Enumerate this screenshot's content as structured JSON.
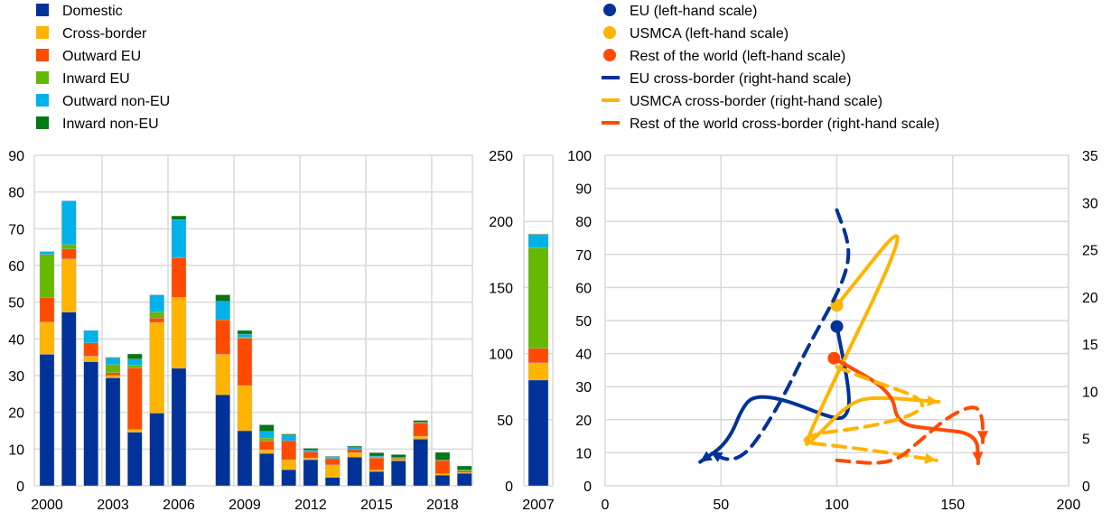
{
  "chart_data": [
    {
      "type": "bar",
      "stacked": true,
      "title": "",
      "xlabel": "",
      "ylabel": "",
      "ylim": [
        0,
        90
      ],
      "yticks": [
        "0",
        "10",
        "20",
        "30",
        "40",
        "50",
        "60",
        "70",
        "80",
        "90"
      ],
      "xtick_labels": [
        "2000",
        "2003",
        "2006",
        "2009",
        "2012",
        "2015",
        "2018"
      ],
      "categories": [
        "2000",
        "2001",
        "2002",
        "2003",
        "2004",
        "2005",
        "2006",
        "2007",
        "2008",
        "2009",
        "2010",
        "2011",
        "2012",
        "2013",
        "2014",
        "2015",
        "2016",
        "2017",
        "2018",
        "2019"
      ],
      "legend_placement": "top-left",
      "series": [
        {
          "name": "Domestic",
          "color": "#003299",
          "values": [
            35.8,
            47.3,
            33.8,
            29.4,
            14.6,
            19.8,
            32.0,
            null,
            24.8,
            15.0,
            8.8,
            4.4,
            7.1,
            2.3,
            7.8,
            3.9,
            6.8,
            12.7,
            2.9,
            3.4
          ]
        },
        {
          "name": "Cross-border",
          "color": "#FFB400",
          "values": [
            8.8,
            14.5,
            1.5,
            0.6,
            0.7,
            24.7,
            19.3,
            null,
            11.0,
            12.3,
            1.0,
            2.7,
            0.5,
            3.4,
            1.2,
            0.4,
            0.4,
            0.8,
            0.4,
            0.2
          ]
        },
        {
          "name": "Outward EU",
          "color": "#FF4B00",
          "values": [
            6.6,
            2.7,
            3.6,
            0.8,
            16.8,
            1.2,
            10.8,
            null,
            9.4,
            12.9,
            2.4,
            5.2,
            1.6,
            1.7,
            1.0,
            3.3,
            0.3,
            3.6,
            3.6,
            0.4
          ]
        },
        {
          "name": "Inward EU",
          "color": "#65B800",
          "values": [
            11.8,
            1.2,
            0,
            2.2,
            0.8,
            1.6,
            0,
            null,
            0,
            0.3,
            0.8,
            0,
            0,
            0,
            0,
            0.2,
            0.2,
            0.2,
            0.1,
            0.3
          ]
        },
        {
          "name": "Outward non-EU",
          "color": "#00B1EA",
          "values": [
            0.8,
            11.9,
            3.4,
            1.8,
            1.6,
            4.7,
            10.4,
            null,
            5.0,
            0.8,
            1.8,
            1.5,
            0.5,
            0.4,
            0.4,
            0.3,
            0,
            0,
            0,
            0
          ]
        },
        {
          "name": "Inward non-EU",
          "color": "#007816",
          "values": [
            0,
            0,
            0,
            0.2,
            1.4,
            0,
            1.0,
            null,
            1.8,
            1.0,
            1.8,
            0.3,
            0.5,
            0.2,
            0.4,
            0.9,
            0.8,
            0.5,
            2.1,
            1.1
          ]
        }
      ]
    },
    {
      "type": "bar",
      "stacked": true,
      "ylim": [
        0,
        250
      ],
      "yticks": [
        "0",
        "50",
        "100",
        "150",
        "200",
        "250"
      ],
      "categories": [
        "2007"
      ],
      "series": [
        {
          "name": "Domestic",
          "values": [
            80
          ]
        },
        {
          "name": "Cross-border",
          "values": [
            13
          ]
        },
        {
          "name": "Outward EU",
          "values": [
            11
          ]
        },
        {
          "name": "Inward EU",
          "values": [
            76
          ]
        },
        {
          "name": "Outward non-EU",
          "values": [
            10
          ]
        },
        {
          "name": "Inward non-EU",
          "values": [
            0.5
          ]
        }
      ]
    },
    {
      "type": "line",
      "xlim": [
        0,
        200
      ],
      "ylim_left": [
        0,
        100
      ],
      "ylim_right": [
        0,
        35
      ],
      "xticks": [
        "0",
        "50",
        "100",
        "150",
        "200"
      ],
      "yticks_left": [
        "0",
        "10",
        "20",
        "30",
        "40",
        "50",
        "60",
        "70",
        "80",
        "90",
        "100"
      ],
      "yticks_right": [
        "0",
        "5",
        "10",
        "15",
        "20",
        "25",
        "30",
        "35"
      ],
      "legend_placement": "top",
      "series": [
        {
          "name": "EU (left-hand scale)",
          "color": "#003299",
          "style": "solid",
          "axis": "left",
          "points": [
            [
              100,
              48.2
            ],
            [
              106,
              26.8
            ],
            [
              104,
              20.4
            ],
            [
              97.5,
              20.5
            ],
            [
              78,
              26
            ],
            [
              66,
              27.3
            ],
            [
              60,
              25
            ],
            [
              53,
              13
            ],
            [
              41,
              7.2
            ]
          ]
        },
        {
          "name": "USMCA (left-hand scale)",
          "color": "#FFB400",
          "style": "solid",
          "axis": "left",
          "points": [
            [
              100,
              54.6
            ],
            [
              137,
              86.9
            ],
            [
              84.5,
              11.3
            ],
            [
              90,
              14
            ],
            [
              106.5,
              25.9
            ],
            [
              119.6,
              26.8
            ],
            [
              144,
              25.4
            ]
          ]
        },
        {
          "name": "Rest of the world (left-hand scale)",
          "color": "#FF4B00",
          "style": "solid",
          "axis": "left",
          "points": [
            [
              98.8,
              38.6
            ],
            [
              124,
              28.6
            ],
            [
              126,
              18.6
            ],
            [
              141.6,
              17.2
            ],
            [
              160.5,
              15.8
            ],
            [
              161,
              6.8
            ]
          ]
        },
        {
          "name": "EU cross-border (right-hand scale)",
          "color": "#003299",
          "style": "dashed",
          "axis": "right",
          "points": [
            [
              100,
              29.2
            ],
            [
              105,
              25.9
            ],
            [
              105,
              23.4
            ],
            [
              100,
              20.2
            ],
            [
              87,
              14.5
            ],
            [
              77,
              9.4
            ],
            [
              65,
              4.6
            ],
            [
              58.5,
              3
            ],
            [
              52,
              2.7
            ],
            [
              45.5,
              3.6
            ]
          ]
        },
        {
          "name": "USMCA cross-border (right-hand scale)",
          "color": "#FFB400",
          "style": "dashed",
          "axis": "right",
          "points": [
            [
              100,
              12.6
            ],
            [
              113,
              11.3
            ],
            [
              139,
              9.1
            ],
            [
              134,
              7.5
            ],
            [
              113,
              6.2
            ],
            [
              89.7,
              5.5
            ],
            [
              84.5,
              4.6
            ],
            [
              97.5,
              4.3
            ],
            [
              119.6,
              3.6
            ],
            [
              143,
              2.7
            ]
          ]
        },
        {
          "name": "Rest of the world cross-border (right-hand scale)",
          "color": "#FF4B00",
          "style": "dashed",
          "axis": "right",
          "points": [
            [
              100,
              2.7
            ],
            [
              123.5,
              2.2
            ],
            [
              136.5,
              4.9
            ],
            [
              149,
              7.5
            ],
            [
              160,
              8.6
            ],
            [
              163,
              7.2
            ],
            [
              163,
              4.6
            ]
          ]
        }
      ]
    }
  ]
}
